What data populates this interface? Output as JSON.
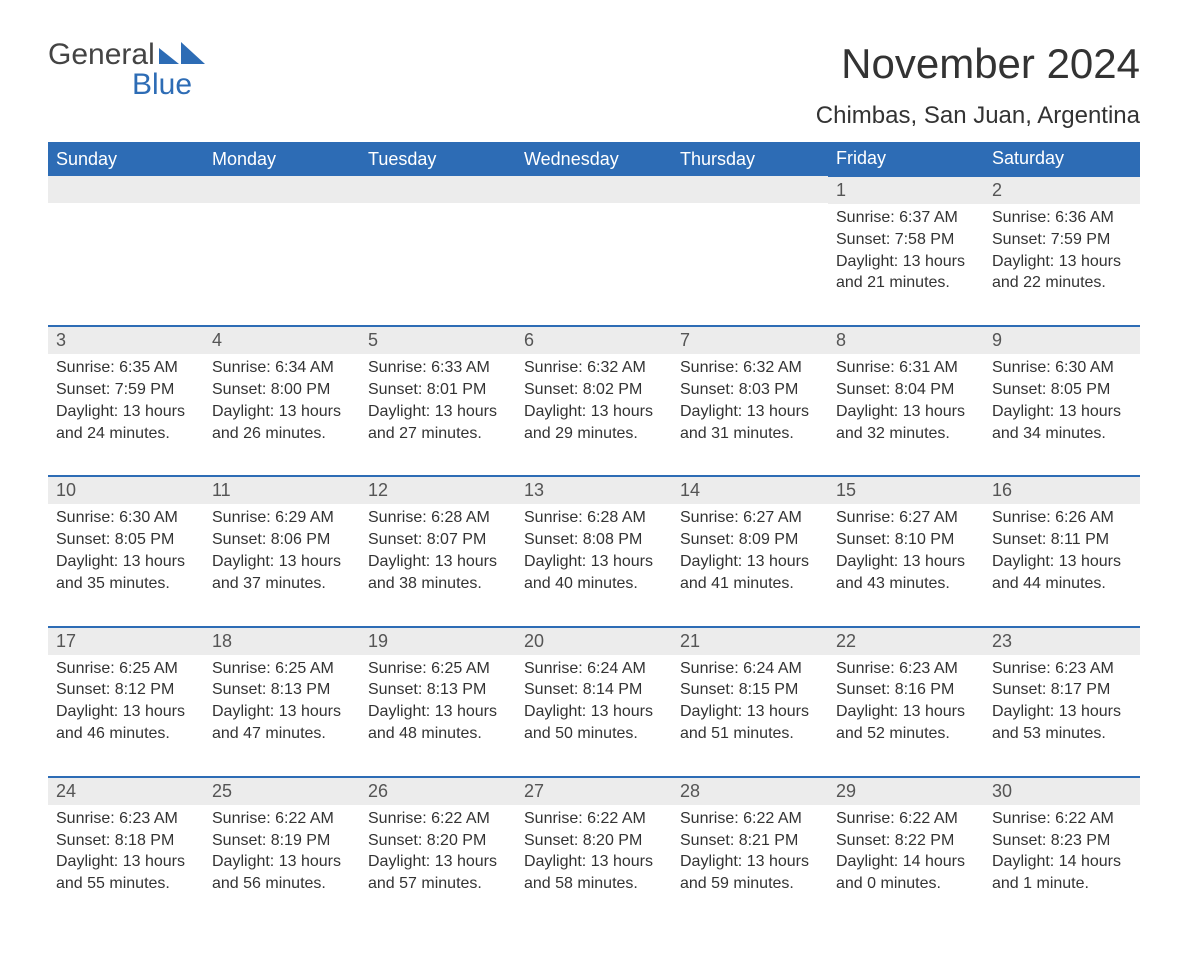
{
  "brand": {
    "word1": "General",
    "word2": "Blue",
    "brand_color": "#2d6cb5"
  },
  "title": "November 2024",
  "location": "Chimbas, San Juan, Argentina",
  "colors": {
    "header_bg": "#2d6cb5",
    "header_text": "#ffffff",
    "row_border": "#2d6cb5",
    "daynum_bg": "#ececec",
    "text": "#333333"
  },
  "weekdays": [
    "Sunday",
    "Monday",
    "Tuesday",
    "Wednesday",
    "Thursday",
    "Friday",
    "Saturday"
  ],
  "weeks": [
    [
      null,
      null,
      null,
      null,
      null,
      {
        "n": "1",
        "sr": "Sunrise: 6:37 AM",
        "ss": "Sunset: 7:58 PM",
        "d1": "Daylight: 13 hours",
        "d2": "and 21 minutes."
      },
      {
        "n": "2",
        "sr": "Sunrise: 6:36 AM",
        "ss": "Sunset: 7:59 PM",
        "d1": "Daylight: 13 hours",
        "d2": "and 22 minutes."
      }
    ],
    [
      {
        "n": "3",
        "sr": "Sunrise: 6:35 AM",
        "ss": "Sunset: 7:59 PM",
        "d1": "Daylight: 13 hours",
        "d2": "and 24 minutes."
      },
      {
        "n": "4",
        "sr": "Sunrise: 6:34 AM",
        "ss": "Sunset: 8:00 PM",
        "d1": "Daylight: 13 hours",
        "d2": "and 26 minutes."
      },
      {
        "n": "5",
        "sr": "Sunrise: 6:33 AM",
        "ss": "Sunset: 8:01 PM",
        "d1": "Daylight: 13 hours",
        "d2": "and 27 minutes."
      },
      {
        "n": "6",
        "sr": "Sunrise: 6:32 AM",
        "ss": "Sunset: 8:02 PM",
        "d1": "Daylight: 13 hours",
        "d2": "and 29 minutes."
      },
      {
        "n": "7",
        "sr": "Sunrise: 6:32 AM",
        "ss": "Sunset: 8:03 PM",
        "d1": "Daylight: 13 hours",
        "d2": "and 31 minutes."
      },
      {
        "n": "8",
        "sr": "Sunrise: 6:31 AM",
        "ss": "Sunset: 8:04 PM",
        "d1": "Daylight: 13 hours",
        "d2": "and 32 minutes."
      },
      {
        "n": "9",
        "sr": "Sunrise: 6:30 AM",
        "ss": "Sunset: 8:05 PM",
        "d1": "Daylight: 13 hours",
        "d2": "and 34 minutes."
      }
    ],
    [
      {
        "n": "10",
        "sr": "Sunrise: 6:30 AM",
        "ss": "Sunset: 8:05 PM",
        "d1": "Daylight: 13 hours",
        "d2": "and 35 minutes."
      },
      {
        "n": "11",
        "sr": "Sunrise: 6:29 AM",
        "ss": "Sunset: 8:06 PM",
        "d1": "Daylight: 13 hours",
        "d2": "and 37 minutes."
      },
      {
        "n": "12",
        "sr": "Sunrise: 6:28 AM",
        "ss": "Sunset: 8:07 PM",
        "d1": "Daylight: 13 hours",
        "d2": "and 38 minutes."
      },
      {
        "n": "13",
        "sr": "Sunrise: 6:28 AM",
        "ss": "Sunset: 8:08 PM",
        "d1": "Daylight: 13 hours",
        "d2": "and 40 minutes."
      },
      {
        "n": "14",
        "sr": "Sunrise: 6:27 AM",
        "ss": "Sunset: 8:09 PM",
        "d1": "Daylight: 13 hours",
        "d2": "and 41 minutes."
      },
      {
        "n": "15",
        "sr": "Sunrise: 6:27 AM",
        "ss": "Sunset: 8:10 PM",
        "d1": "Daylight: 13 hours",
        "d2": "and 43 minutes."
      },
      {
        "n": "16",
        "sr": "Sunrise: 6:26 AM",
        "ss": "Sunset: 8:11 PM",
        "d1": "Daylight: 13 hours",
        "d2": "and 44 minutes."
      }
    ],
    [
      {
        "n": "17",
        "sr": "Sunrise: 6:25 AM",
        "ss": "Sunset: 8:12 PM",
        "d1": "Daylight: 13 hours",
        "d2": "and 46 minutes."
      },
      {
        "n": "18",
        "sr": "Sunrise: 6:25 AM",
        "ss": "Sunset: 8:13 PM",
        "d1": "Daylight: 13 hours",
        "d2": "and 47 minutes."
      },
      {
        "n": "19",
        "sr": "Sunrise: 6:25 AM",
        "ss": "Sunset: 8:13 PM",
        "d1": "Daylight: 13 hours",
        "d2": "and 48 minutes."
      },
      {
        "n": "20",
        "sr": "Sunrise: 6:24 AM",
        "ss": "Sunset: 8:14 PM",
        "d1": "Daylight: 13 hours",
        "d2": "and 50 minutes."
      },
      {
        "n": "21",
        "sr": "Sunrise: 6:24 AM",
        "ss": "Sunset: 8:15 PM",
        "d1": "Daylight: 13 hours",
        "d2": "and 51 minutes."
      },
      {
        "n": "22",
        "sr": "Sunrise: 6:23 AM",
        "ss": "Sunset: 8:16 PM",
        "d1": "Daylight: 13 hours",
        "d2": "and 52 minutes."
      },
      {
        "n": "23",
        "sr": "Sunrise: 6:23 AM",
        "ss": "Sunset: 8:17 PM",
        "d1": "Daylight: 13 hours",
        "d2": "and 53 minutes."
      }
    ],
    [
      {
        "n": "24",
        "sr": "Sunrise: 6:23 AM",
        "ss": "Sunset: 8:18 PM",
        "d1": "Daylight: 13 hours",
        "d2": "and 55 minutes."
      },
      {
        "n": "25",
        "sr": "Sunrise: 6:22 AM",
        "ss": "Sunset: 8:19 PM",
        "d1": "Daylight: 13 hours",
        "d2": "and 56 minutes."
      },
      {
        "n": "26",
        "sr": "Sunrise: 6:22 AM",
        "ss": "Sunset: 8:20 PM",
        "d1": "Daylight: 13 hours",
        "d2": "and 57 minutes."
      },
      {
        "n": "27",
        "sr": "Sunrise: 6:22 AM",
        "ss": "Sunset: 8:20 PM",
        "d1": "Daylight: 13 hours",
        "d2": "and 58 minutes."
      },
      {
        "n": "28",
        "sr": "Sunrise: 6:22 AM",
        "ss": "Sunset: 8:21 PM",
        "d1": "Daylight: 13 hours",
        "d2": "and 59 minutes."
      },
      {
        "n": "29",
        "sr": "Sunrise: 6:22 AM",
        "ss": "Sunset: 8:22 PM",
        "d1": "Daylight: 14 hours",
        "d2": "and 0 minutes."
      },
      {
        "n": "30",
        "sr": "Sunrise: 6:22 AM",
        "ss": "Sunset: 8:23 PM",
        "d1": "Daylight: 14 hours",
        "d2": "and 1 minute."
      }
    ]
  ]
}
